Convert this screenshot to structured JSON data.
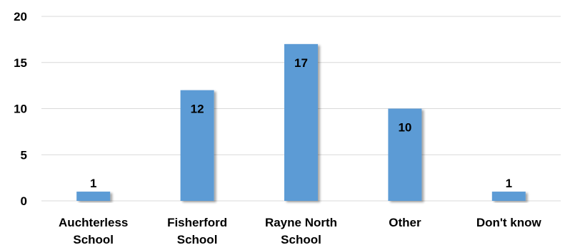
{
  "chart_data": {
    "type": "bar",
    "categories": [
      [
        "Auchterless",
        "School"
      ],
      [
        "Fisherford",
        "School"
      ],
      [
        "Rayne North",
        "School"
      ],
      [
        "Other"
      ],
      [
        "Don't know"
      ]
    ],
    "values": [
      1,
      12,
      17,
      10,
      1
    ],
    "ylim": [
      0,
      20
    ],
    "yticks": [
      0,
      5,
      10,
      15,
      20
    ],
    "grid": true,
    "legend": "none",
    "bar_color": "#5b9bd5",
    "grid_color": "#d9d9d9"
  }
}
